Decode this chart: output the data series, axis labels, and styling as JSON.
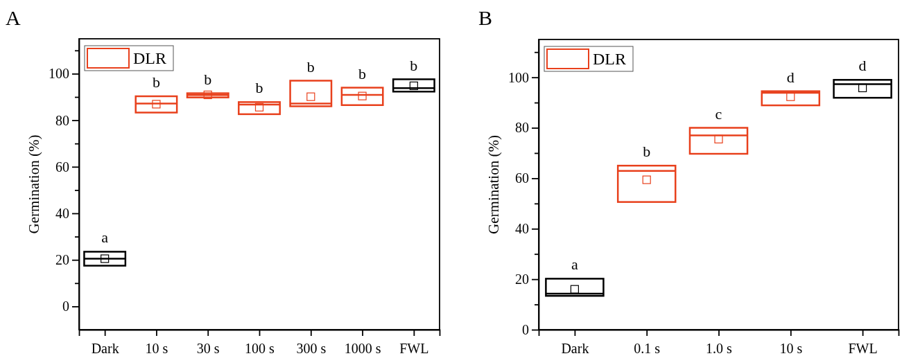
{
  "chart_data": [
    {
      "type": "box",
      "title": "A",
      "ylabel": "Germination (%)",
      "categories": [
        "Dark",
        "10 s",
        "30 s",
        "100 s",
        "300 s",
        "1000 s",
        "FWL"
      ],
      "ylim": [
        -10,
        115
      ],
      "yticks": [
        0,
        {
          "value": 10,
          "label": null
        },
        20,
        {
          "value": 30,
          "label": null
        },
        40,
        {
          "value": 50,
          "label": null
        },
        60,
        {
          "value": 70,
          "label": null
        },
        80,
        {
          "value": 90,
          "label": null
        },
        100,
        {
          "value": 110,
          "label": null
        }
      ],
      "legend": "top left",
      "series": [
        {
          "color": "#000000",
          "boxes": [
            {
              "low": 17.5,
              "q1": 17.5,
              "median": 20.5,
              "q3": 23.5,
              "high": 23.5,
              "mean": 20.5
            },
            null,
            null,
            null,
            null,
            null,
            {
              "low": 92.3,
              "q1": 92.3,
              "median": 93.8,
              "q3": 97.6,
              "high": 97.6,
              "mean": 94.8
            }
          ]
        },
        {
          "name": "DLR",
          "color": "#e8401c",
          "boxes": [
            null,
            {
              "low": 83.3,
              "q1": 83.3,
              "median": 87.2,
              "q3": 90.3,
              "high": 90.3,
              "mean": 86.9
            },
            {
              "low": 89.8,
              "q1": 89.8,
              "median": 90.8,
              "q3": 91.6,
              "high": 91.6,
              "mean": 90.9
            },
            {
              "low": 82.6,
              "q1": 82.6,
              "median": 86.7,
              "q3": 87.8,
              "high": 87.8,
              "mean": 85.6
            },
            {
              "low": 86.0,
              "q1": 86.0,
              "median": 87.2,
              "q3": 97.0,
              "high": 97.0,
              "mean": 90.1
            },
            {
              "low": 86.5,
              "q1": 86.5,
              "median": 90.9,
              "q3": 94.0,
              "high": 94.0,
              "mean": 90.4
            },
            null
          ]
        }
      ],
      "annotations": [
        "a",
        "b",
        "b",
        "b",
        "b",
        "b",
        "b"
      ]
    },
    {
      "type": "box",
      "title": "B",
      "ylabel": "Germination (%)",
      "categories": [
        "Dark",
        "0.1 s",
        "1.0 s",
        "10 s",
        "FWL"
      ],
      "ylim": [
        0,
        115
      ],
      "yticks": [
        0,
        {
          "value": 10,
          "label": null
        },
        20,
        {
          "value": 30,
          "label": null
        },
        40,
        {
          "value": 50,
          "label": null
        },
        60,
        {
          "value": 70,
          "label": null
        },
        80,
        {
          "value": 90,
          "label": null
        },
        100,
        {
          "value": 110,
          "label": null
        }
      ],
      "legend": "top left",
      "series": [
        {
          "color": "#000000",
          "boxes": [
            {
              "low": 13.4,
              "q1": 13.4,
              "median": 14.3,
              "q3": 20.2,
              "high": 20.2,
              "mean": 16.0
            },
            null,
            null,
            null,
            {
              "low": 91.9,
              "q1": 91.9,
              "median": 97.3,
              "q3": 99.0,
              "high": 99.0,
              "mean": 95.8
            }
          ]
        },
        {
          "name": "DLR",
          "color": "#e8401c",
          "boxes": [
            null,
            {
              "low": 50.6,
              "q1": 50.6,
              "median": 62.9,
              "q3": 65.0,
              "high": 65.0,
              "mean": 59.4
            },
            {
              "low": 69.7,
              "q1": 69.7,
              "median": 77.0,
              "q3": 80.0,
              "high": 80.0,
              "mean": 75.5
            },
            {
              "low": 88.9,
              "q1": 88.9,
              "median": 93.9,
              "q3": 94.5,
              "high": 94.5,
              "mean": 92.3
            },
            null
          ]
        }
      ],
      "annotations": [
        "a",
        "b",
        "c",
        "d",
        "d"
      ]
    }
  ]
}
